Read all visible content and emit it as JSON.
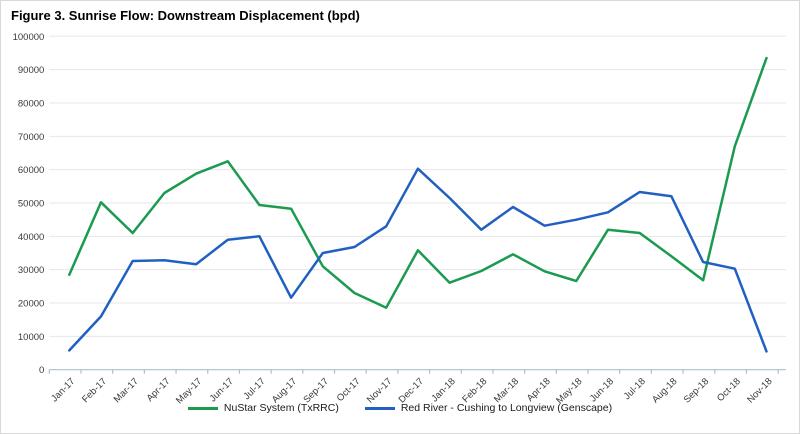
{
  "figure": {
    "title": "Figure 3. Sunrise Flow: Downstream Displacement (bpd)"
  },
  "chart_data": {
    "type": "line",
    "title": "Figure 3. Sunrise Flow: Downstream Displacement (bpd)",
    "categories": [
      "Jan-17",
      "Feb-17",
      "Mar-17",
      "Apr-17",
      "May-17",
      "Jun-17",
      "Jul-17",
      "Aug-17",
      "Sep-17",
      "Oct-17",
      "Nov-17",
      "Dec-17",
      "Jan-18",
      "Feb-18",
      "Mar-18",
      "Apr-18",
      "May-18",
      "Jun-18",
      "Jul-18",
      "Aug-18",
      "Sep-18",
      "Oct-18",
      "Nov-18"
    ],
    "series": [
      {
        "name": "NuStar System (TxRRC)",
        "color": "#1b9a50",
        "values": [
          28500,
          50200,
          41000,
          53000,
          58800,
          62500,
          49400,
          48300,
          31000,
          23000,
          18600,
          35800,
          26100,
          29600,
          34600,
          29500,
          26600,
          42000,
          41000,
          34000,
          26800,
          67000,
          93500
        ]
      },
      {
        "name": "Red River - Cushing to Longview (Genscape)",
        "color": "#2160c2",
        "values": [
          5800,
          16000,
          32600,
          32800,
          31600,
          39000,
          40000,
          21600,
          35000,
          36800,
          43000,
          60300,
          51500,
          42000,
          48800,
          43200,
          45000,
          47200,
          53300,
          52000,
          32300,
          30300,
          5500
        ]
      }
    ],
    "xlabel": "",
    "ylabel": "",
    "ylim": [
      0,
      100000
    ],
    "ytick_step": 10000,
    "grid": "horizontal",
    "legend_position": "bottom"
  },
  "style": {
    "gridline_color": "#e7e7e7",
    "axis_color": "#aebfcb",
    "label_color": "#3a3a3a"
  }
}
